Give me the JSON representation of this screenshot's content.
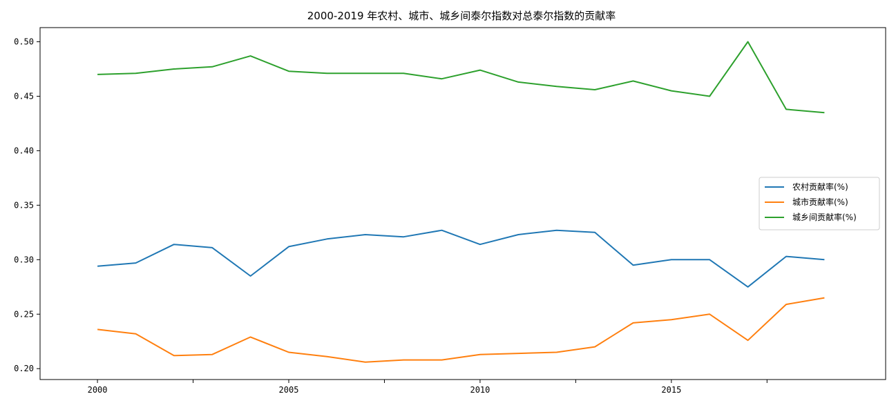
{
  "chart_data": {
    "type": "line",
    "title": "2000-2019 年农村、城市、城乡间泰尔指数对总泰尔指数的贡献率",
    "xlabel": "",
    "ylabel": "",
    "x": [
      2000,
      2001,
      2002,
      2003,
      2004,
      2005,
      2006,
      2007,
      2008,
      2009,
      2010,
      2011,
      2012,
      2013,
      2014,
      2015,
      2016,
      2017,
      2018,
      2019
    ],
    "xlim": [
      1998.5,
      2020.6
    ],
    "ylim": [
      0.19,
      0.513
    ],
    "x_ticks": [
      2000,
      2002.5,
      2005,
      2007.5,
      2010,
      2012.5,
      2015,
      2017.5
    ],
    "x_tick_labels": [
      "2000",
      "",
      "2005",
      "",
      "2010",
      "",
      "2015",
      ""
    ],
    "y_ticks": [
      0.2,
      0.25,
      0.3,
      0.35,
      0.4,
      0.45,
      0.5
    ],
    "y_tick_labels": [
      "0.20",
      "0.25",
      "0.30",
      "0.35",
      "0.40",
      "0.45",
      "0.50"
    ],
    "grid": false,
    "legend_position": "center-right",
    "series": [
      {
        "name": "农村贡献率(%)",
        "color": "#1f77b4",
        "values": [
          0.294,
          0.297,
          0.314,
          0.311,
          0.285,
          0.312,
          0.319,
          0.323,
          0.321,
          0.327,
          0.314,
          0.323,
          0.327,
          0.325,
          0.295,
          0.3,
          0.3,
          0.275,
          0.303,
          0.3
        ]
      },
      {
        "name": "城市贡献率(%)",
        "color": "#ff7f0e",
        "values": [
          0.236,
          0.232,
          0.212,
          0.213,
          0.229,
          0.215,
          0.211,
          0.206,
          0.208,
          0.208,
          0.213,
          0.214,
          0.215,
          0.22,
          0.242,
          0.245,
          0.25,
          0.226,
          0.259,
          0.265
        ]
      },
      {
        "name": "城乡间贡献率(%)",
        "color": "#2ca02c",
        "values": [
          0.47,
          0.471,
          0.475,
          0.477,
          0.487,
          0.473,
          0.471,
          0.471,
          0.471,
          0.466,
          0.474,
          0.463,
          0.459,
          0.456,
          0.464,
          0.455,
          0.45,
          0.5,
          0.438,
          0.435
        ]
      }
    ]
  }
}
